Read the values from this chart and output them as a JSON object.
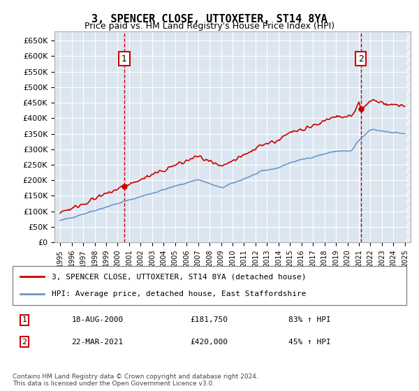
{
  "title": "3, SPENCER CLOSE, UTTOXETER, ST14 8YA",
  "subtitle": "Price paid vs. HM Land Registry's House Price Index (HPI)",
  "legend_line1": "3, SPENCER CLOSE, UTTOXETER, ST14 8YA (detached house)",
  "legend_line2": "HPI: Average price, detached house, East Staffordshire",
  "annotation1_label": "1",
  "annotation1_date": "18-AUG-2000",
  "annotation1_price": "£181,750",
  "annotation1_hpi": "83% ↑ HPI",
  "annotation2_label": "2",
  "annotation2_date": "22-MAR-2021",
  "annotation2_price": "£420,000",
  "annotation2_hpi": "45% ↑ HPI",
  "footer": "Contains HM Land Registry data © Crown copyright and database right 2024.\nThis data is licensed under the Open Government Licence v3.0.",
  "hpi_color": "#6699cc",
  "price_color": "#cc0000",
  "annotation_box_color": "#cc0000",
  "background_color": "#dce6f1",
  "grid_color": "#ffffff",
  "ylim": [
    0,
    680000
  ],
  "yticks": [
    0,
    50000,
    100000,
    150000,
    200000,
    250000,
    300000,
    350000,
    400000,
    450000,
    500000,
    550000,
    600000,
    650000
  ],
  "sale1_year": 2000.6,
  "sale1_value": 181750,
  "sale2_year": 2021.2,
  "sale2_value": 420000,
  "dashed_line_color": "#cc0000"
}
